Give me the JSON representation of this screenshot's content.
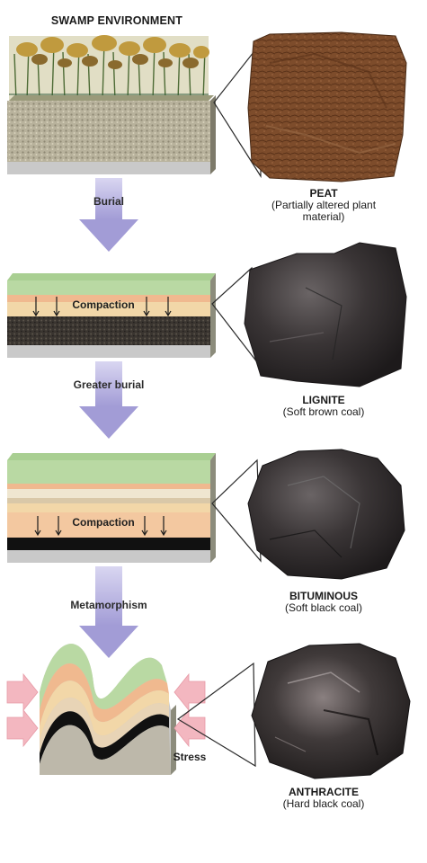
{
  "title": "SWAMP ENVIRONMENT",
  "stages": [
    {
      "rock": "PEAT",
      "description": "(Partially altered plant material)"
    },
    {
      "rock": "LIGNITE",
      "description": "(Soft brown coal)"
    },
    {
      "rock": "BITUMINOUS",
      "description": "(Soft black coal)"
    },
    {
      "rock": "ANTHRACITE",
      "description": "(Hard black coal)"
    }
  ],
  "processes": [
    "Burial",
    "Greater burial",
    "Metamorphism"
  ],
  "compaction_label": "Compaction",
  "stress_label": "Stress",
  "colors": {
    "arrow": "#a7a2d9",
    "stress_arrow": "#f3b7c0",
    "peat": "#7a4a2a",
    "lignite": "#3b3536",
    "bituminous": "#2c2a2b",
    "anthracite": "#3a3434",
    "green_layer": "#b9d9a3",
    "tan_layer": "#f2d7a8",
    "pink_layer": "#f0b98f",
    "coal_layer": "#111111"
  }
}
